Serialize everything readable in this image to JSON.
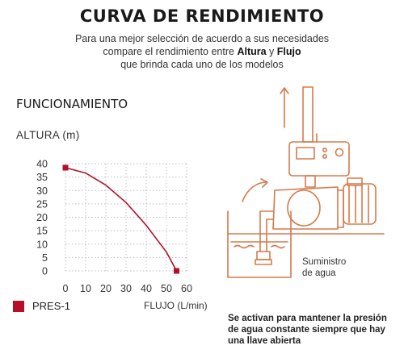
{
  "header": {
    "title": "CURVA DE RENDIMIENTO",
    "intro_line1": "Para una mejor selección de acuerdo a sus necesidades",
    "intro_line2_a": "compare el rendimiento entre ",
    "intro_line2_b": "Altura",
    "intro_line2_c": " y ",
    "intro_line2_d": "Flujo",
    "intro_line3": "que brinda cada uno de los modelos"
  },
  "section_title": "FUNCIONAMIENTO",
  "diagram": {
    "supply_label_line1": "Suministro",
    "supply_label_line2": "de agua",
    "note": "Se activan para mantener la presión de agua constante siempre que hay una llave abierta"
  },
  "colors": {
    "series": "#b4102a",
    "illustration": "#d57a4a",
    "grid": "#bfbfbf"
  },
  "chart_data": {
    "type": "line",
    "ylabel": "ALTURA  (m)",
    "xlabel": "FLUJO (L/min)",
    "xlim": [
      0,
      60
    ],
    "ylim": [
      0,
      40
    ],
    "xticks": [
      0,
      10,
      20,
      30,
      40,
      50,
      60
    ],
    "yticks": [
      0,
      5,
      10,
      15,
      20,
      25,
      30,
      35,
      40
    ],
    "grid": "dotted",
    "legend_position": "bottom-left",
    "series": [
      {
        "name": "PRES-1",
        "color": "#b4102a",
        "x": [
          0,
          10,
          20,
          30,
          40,
          50,
          55
        ],
        "y": [
          38.5,
          36.5,
          32,
          25.5,
          17,
          7,
          0
        ]
      }
    ]
  }
}
